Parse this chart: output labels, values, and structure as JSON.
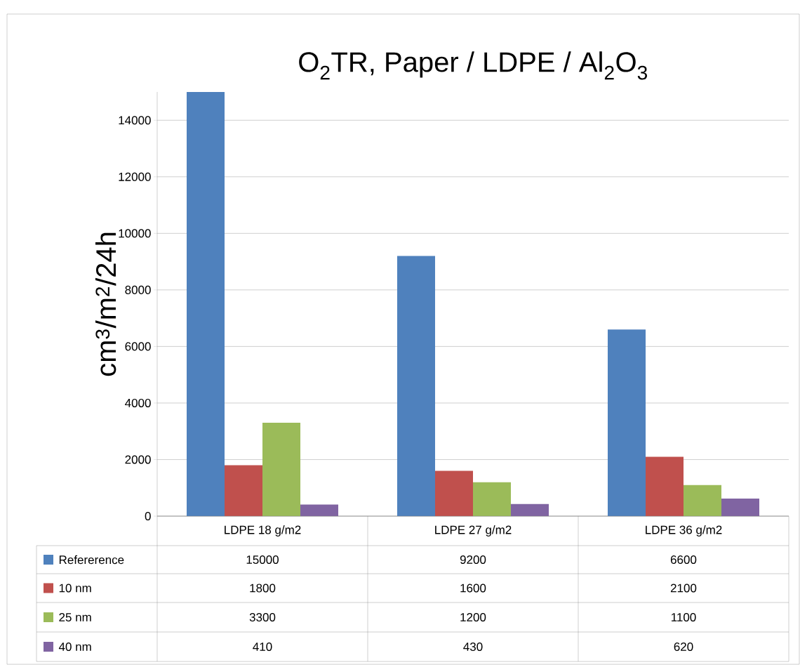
{
  "chart_data": {
    "type": "bar",
    "title": "O$_{2}$TR, Paper / LDPE / Al$_{2}$O$_{3}$",
    "ylabel": "cm$^{3}$/m$^{2}$/24h",
    "categories": [
      "LDPE 18 g/m2",
      "LDPE 27 g/m2",
      "LDPE 36 g/m2"
    ],
    "series": [
      {
        "name": "Refererence",
        "color": "#4f81bd",
        "values": [
          15000,
          9200,
          6600
        ]
      },
      {
        "name": "10 nm",
        "color": "#c0504d",
        "values": [
          1800,
          1600,
          2100
        ]
      },
      {
        "name": "25 nm",
        "color": "#9bbb59",
        "values": [
          3300,
          1200,
          1100
        ]
      },
      {
        "name": "40 nm",
        "color": "#8064a2",
        "values": [
          410,
          430,
          620
        ]
      }
    ],
    "ylim": [
      0,
      15000
    ],
    "yticks": [
      0,
      2000,
      4000,
      6000,
      8000,
      10000,
      12000,
      14000
    ],
    "grid": "y",
    "legend": "bottom",
    "data_labels": true
  }
}
